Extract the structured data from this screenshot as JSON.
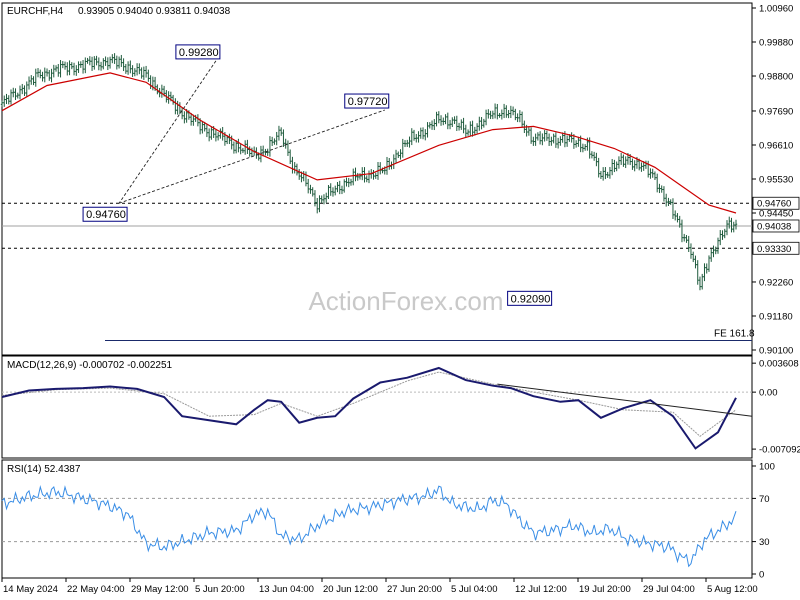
{
  "header": {
    "symbol": "EURCHF,H4",
    "ohlc": "0.93905 0.94040 0.93811 0.94038"
  },
  "watermark": "ActionForex.com",
  "colors": {
    "price_bars": "#1e5a3c",
    "ma_line": "#cc0000",
    "macd_line": "#1a1a6e",
    "signal_line": "#9a9a9a",
    "rsi_line": "#3a8ee6",
    "annotation_box": "#000080"
  },
  "chart_data": [
    {
      "type": "bar",
      "name": "price",
      "ylim": [
        0.901,
        1.0096
      ],
      "y_ticks": [
        "1.00960",
        "0.99880",
        "0.98800",
        "0.97690",
        "0.96610",
        "0.95530",
        "0.94450",
        "0.92260",
        "0.91180",
        "0.90100"
      ],
      "x_ticks": [
        "14 May 2024",
        "22 May 04:00",
        "29 May 12:00",
        "5 Jun 20:00",
        "13 Jun 04:00",
        "20 Jun 12:00",
        "27 Jun 20:00",
        "5 Jul 04:00",
        "12 Jul 12:00",
        "19 Jul 20:00",
        "29 Jul 04:00",
        "5 Aug 12:00"
      ],
      "h_levels": [
        {
          "label": "0.94760",
          "value": 0.9476,
          "style": "dashed"
        },
        {
          "label": "0.94038",
          "value": 0.94038,
          "style": "solid-grey",
          "current": true
        },
        {
          "label": "0.93330",
          "value": 0.9333,
          "style": "dashed"
        }
      ],
      "fe_line": {
        "label": "FE 161.8",
        "value": 0.904
      },
      "annotations": [
        {
          "label": "0.99280",
          "x": 95,
          "y": 0.9928
        },
        {
          "label": "0.94760",
          "x": 52,
          "y": 0.9476
        },
        {
          "label": "0.97720",
          "x": 170,
          "y": 0.9772
        },
        {
          "label": "0.92090",
          "x": 245,
          "y": 0.9209
        }
      ],
      "trend_lines": [
        {
          "x1": 95,
          "y1": 0.9928,
          "x2": 52,
          "y2": 0.9476
        },
        {
          "x1": 52,
          "y1": 0.9476,
          "x2": 170,
          "y2": 0.9772
        }
      ],
      "close_points": [
        [
          0,
          0.979
        ],
        [
          8,
          0.9835
        ],
        [
          16,
          0.988
        ],
        [
          24,
          0.99
        ],
        [
          32,
          0.991
        ],
        [
          40,
          0.992
        ],
        [
          48,
          0.9928
        ],
        [
          56,
          0.991
        ],
        [
          64,
          0.988
        ],
        [
          72,
          0.982
        ],
        [
          80,
          0.9765
        ],
        [
          88,
          0.972
        ],
        [
          96,
          0.969
        ],
        [
          104,
          0.966
        ],
        [
          112,
          0.963
        ],
        [
          118,
          0.965
        ],
        [
          124,
          0.97
        ],
        [
          130,
          0.958
        ],
        [
          136,
          0.953
        ],
        [
          140,
          0.9476
        ],
        [
          146,
          0.951
        ],
        [
          152,
          0.954
        ],
        [
          158,
          0.956
        ],
        [
          164,
          0.957
        ],
        [
          170,
          0.958
        ],
        [
          176,
          0.964
        ],
        [
          182,
          0.968
        ],
        [
          188,
          0.971
        ],
        [
          194,
          0.974
        ],
        [
          200,
          0.974
        ],
        [
          206,
          0.97
        ],
        [
          212,
          0.973
        ],
        [
          218,
          0.976
        ],
        [
          224,
          0.9772
        ],
        [
          230,
          0.974
        ],
        [
          236,
          0.968
        ],
        [
          242,
          0.968
        ],
        [
          248,
          0.968
        ],
        [
          254,
          0.967
        ],
        [
          260,
          0.966
        ],
        [
          266,
          0.956
        ],
        [
          272,
          0.96
        ],
        [
          278,
          0.961
        ],
        [
          284,
          0.96
        ],
        [
          290,
          0.955
        ],
        [
          296,
          0.948
        ],
        [
          302,
          0.938
        ],
        [
          306,
          0.933
        ],
        [
          310,
          0.9209
        ],
        [
          314,
          0.93
        ],
        [
          318,
          0.936
        ],
        [
          322,
          0.94
        ],
        [
          326,
          0.94038
        ]
      ],
      "ma_points": [
        [
          0,
          0.977
        ],
        [
          20,
          0.985
        ],
        [
          48,
          0.989
        ],
        [
          64,
          0.986
        ],
        [
          88,
          0.974
        ],
        [
          112,
          0.964
        ],
        [
          140,
          0.955
        ],
        [
          164,
          0.957
        ],
        [
          194,
          0.966
        ],
        [
          218,
          0.971
        ],
        [
          236,
          0.972
        ],
        [
          254,
          0.969
        ],
        [
          272,
          0.965
        ],
        [
          290,
          0.959
        ],
        [
          302,
          0.953
        ],
        [
          314,
          0.947
        ],
        [
          326,
          0.9445
        ]
      ]
    },
    {
      "type": "line",
      "name": "macd",
      "title": "MACD(12,26,9) -0.000702 -0.002251",
      "ylim": [
        -0.0082,
        0.0045
      ],
      "y_ticks": [
        "0.003608",
        "0.00",
        "-0.007092"
      ],
      "macd_points": [
        [
          0,
          -0.0006
        ],
        [
          12,
          0.0002
        ],
        [
          24,
          0.0004
        ],
        [
          36,
          0.0005
        ],
        [
          48,
          0.0007
        ],
        [
          60,
          0.0004
        ],
        [
          72,
          -0.0006
        ],
        [
          80,
          -0.003
        ],
        [
          92,
          -0.0035
        ],
        [
          104,
          -0.004
        ],
        [
          112,
          -0.0022
        ],
        [
          118,
          -0.001
        ],
        [
          124,
          -0.0012
        ],
        [
          132,
          -0.0038
        ],
        [
          140,
          -0.0032
        ],
        [
          148,
          -0.003
        ],
        [
          156,
          -0.0008
        ],
        [
          168,
          0.0012
        ],
        [
          180,
          0.0018
        ],
        [
          194,
          0.003
        ],
        [
          206,
          0.0015
        ],
        [
          218,
          0.0008
        ],
        [
          226,
          0.0005
        ],
        [
          236,
          -0.0005
        ],
        [
          248,
          -0.0012
        ],
        [
          256,
          -0.001
        ],
        [
          266,
          -0.0032
        ],
        [
          276,
          -0.002
        ],
        [
          288,
          -0.001
        ],
        [
          298,
          -0.003
        ],
        [
          308,
          -0.007
        ],
        [
          318,
          -0.005
        ],
        [
          326,
          -0.0007
        ]
      ],
      "signal_points": [
        [
          0,
          -0.0004
        ],
        [
          24,
          0.0003
        ],
        [
          48,
          0.0005
        ],
        [
          72,
          -0.0002
        ],
        [
          92,
          -0.003
        ],
        [
          112,
          -0.0028
        ],
        [
          124,
          -0.0014
        ],
        [
          140,
          -0.003
        ],
        [
          156,
          -0.0014
        ],
        [
          180,
          0.0014
        ],
        [
          194,
          0.0025
        ],
        [
          218,
          0.001
        ],
        [
          236,
          0.0
        ],
        [
          256,
          -0.001
        ],
        [
          276,
          -0.0022
        ],
        [
          298,
          -0.0025
        ],
        [
          310,
          -0.0055
        ],
        [
          326,
          -0.0022
        ]
      ],
      "trend_line": {
        "x1": 220,
        "y1": 0.001,
        "x2": 326,
        "y2": -0.003
      }
    },
    {
      "type": "line",
      "name": "rsi",
      "title": "RSI(14) 52.4387",
      "ylim": [
        0,
        100
      ],
      "y_ticks": [
        "100",
        "70",
        "30",
        "0"
      ],
      "levels": [
        70,
        30
      ],
      "points": [
        [
          0,
          65
        ],
        [
          12,
          72
        ],
        [
          24,
          76
        ],
        [
          36,
          70
        ],
        [
          48,
          63
        ],
        [
          56,
          55
        ],
        [
          64,
          28
        ],
        [
          72,
          25
        ],
        [
          80,
          30
        ],
        [
          92,
          38
        ],
        [
          104,
          40
        ],
        [
          112,
          55
        ],
        [
          118,
          58
        ],
        [
          124,
          35
        ],
        [
          132,
          32
        ],
        [
          140,
          45
        ],
        [
          152,
          58
        ],
        [
          164,
          62
        ],
        [
          176,
          68
        ],
        [
          188,
          72
        ],
        [
          194,
          78
        ],
        [
          200,
          65
        ],
        [
          206,
          62
        ],
        [
          212,
          60
        ],
        [
          218,
          68
        ],
        [
          224,
          65
        ],
        [
          230,
          50
        ],
        [
          236,
          38
        ],
        [
          244,
          40
        ],
        [
          254,
          45
        ],
        [
          262,
          38
        ],
        [
          270,
          42
        ],
        [
          278,
          32
        ],
        [
          288,
          28
        ],
        [
          296,
          25
        ],
        [
          302,
          15
        ],
        [
          306,
          12
        ],
        [
          312,
          32
        ],
        [
          318,
          40
        ],
        [
          326,
          52
        ]
      ]
    }
  ]
}
